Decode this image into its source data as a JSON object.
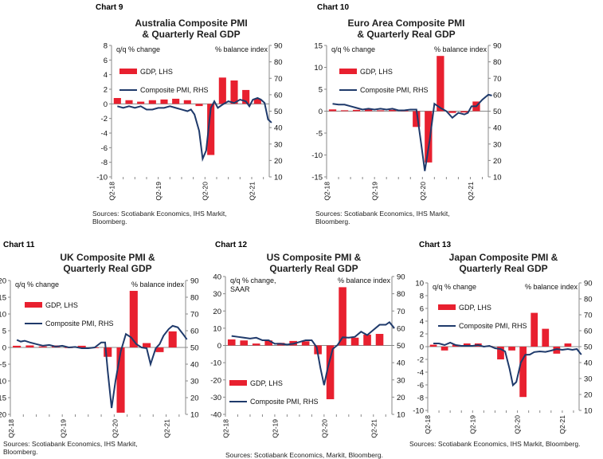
{
  "colors": {
    "gdp": "#e8202f",
    "pmi": "#1f3a6b",
    "axis": "#888888"
  },
  "chart_data": [
    {
      "type": "bar",
      "chart_label": "Chart 9",
      "title": "Australia Composite PMI\n& Quarterly Real GDP",
      "lhs_label": "q/q % change",
      "rhs_label": "% balance index",
      "ylim_lhs": [
        -10,
        8
      ],
      "ytick_lhs": [
        8,
        6,
        4,
        2,
        0,
        -2,
        -4,
        -6,
        -8,
        -10
      ],
      "ylim_rhs": [
        10,
        90
      ],
      "ytick_rhs": [
        90,
        80,
        70,
        60,
        50,
        40,
        30,
        20,
        10
      ],
      "legend": [
        "GDP, LHS",
        "Composite PMI, RHS"
      ],
      "xtick_labels": [
        "Q2-18",
        "Q2-19",
        "Q2-20",
        "Q2-21"
      ],
      "source": "Sources: Scotiabank Economics, IHS Markit,\nBloomberg.",
      "gdp_series": [
        {
          "q": 0,
          "v": 0.8
        },
        {
          "q": 1,
          "v": 0.5
        },
        {
          "q": 2,
          "v": 0.3
        },
        {
          "q": 3,
          "v": 0.5
        },
        {
          "q": 4,
          "v": 0.6
        },
        {
          "q": 5,
          "v": 0.7
        },
        {
          "q": 6,
          "v": 0.5
        },
        {
          "q": 7,
          "v": -0.3
        },
        {
          "q": 8,
          "v": -7.0
        },
        {
          "q": 9,
          "v": 3.6
        },
        {
          "q": 10,
          "v": 3.2
        },
        {
          "q": 11,
          "v": 1.9
        },
        {
          "q": 12,
          "v": 0.7
        }
      ],
      "pmi_series": [
        {
          "t": 0,
          "v": 53
        },
        {
          "t": 0.5,
          "v": 52
        },
        {
          "t": 1,
          "v": 53
        },
        {
          "t": 1.5,
          "v": 52
        },
        {
          "t": 2,
          "v": 53
        },
        {
          "t": 2.5,
          "v": 51
        },
        {
          "t": 3,
          "v": 51
        },
        {
          "t": 3.5,
          "v": 52
        },
        {
          "t": 4,
          "v": 52
        },
        {
          "t": 4.5,
          "v": 53
        },
        {
          "t": 5,
          "v": 52
        },
        {
          "t": 5.5,
          "v": 51
        },
        {
          "t": 6,
          "v": 50
        },
        {
          "t": 6.3,
          "v": 51
        },
        {
          "t": 6.6,
          "v": 48
        },
        {
          "t": 7,
          "v": 38
        },
        {
          "t": 7.3,
          "v": 21
        },
        {
          "t": 7.6,
          "v": 26
        },
        {
          "t": 8,
          "v": 52
        },
        {
          "t": 8.3,
          "v": 56
        },
        {
          "t": 8.6,
          "v": 52
        },
        {
          "t": 9,
          "v": 54
        },
        {
          "t": 9.5,
          "v": 56
        },
        {
          "t": 10,
          "v": 55
        },
        {
          "t": 10.5,
          "v": 57
        },
        {
          "t": 11,
          "v": 56
        },
        {
          "t": 11.3,
          "v": 53
        },
        {
          "t": 11.6,
          "v": 57
        },
        {
          "t": 12,
          "v": 58
        },
        {
          "t": 12.3,
          "v": 57
        },
        {
          "t": 12.6,
          "v": 55
        },
        {
          "t": 12.9,
          "v": 45
        },
        {
          "t": 13.2,
          "v": 43
        }
      ],
      "x_max": 13.5
    },
    {
      "type": "bar",
      "chart_label": "Chart 10",
      "title": "Euro Area Composite PMI\n& Quarterly Real GDP",
      "lhs_label": "q/q % change",
      "rhs_label": "% balance index",
      "ylim_lhs": [
        -15,
        15
      ],
      "ytick_lhs": [
        15,
        10,
        5,
        0,
        -5,
        -10,
        -15
      ],
      "ylim_rhs": [
        10,
        90
      ],
      "ytick_rhs": [
        90,
        80,
        70,
        60,
        50,
        40,
        30,
        20,
        10
      ],
      "legend": [
        "GDP, LHS",
        "Composite PMI, RHS"
      ],
      "xtick_labels": [
        "Q2-18",
        "Q2-19",
        "Q2-20",
        "Q2-21"
      ],
      "source": "Sources: Scotiabank Economics, IHS Markit,\nBloomberg.",
      "gdp_series": [
        {
          "q": 0,
          "v": 0.4
        },
        {
          "q": 1,
          "v": 0.2
        },
        {
          "q": 2,
          "v": 0.3
        },
        {
          "q": 3,
          "v": 0.5
        },
        {
          "q": 4,
          "v": 0.2
        },
        {
          "q": 5,
          "v": 0.3
        },
        {
          "q": 6,
          "v": 0.1
        },
        {
          "q": 7,
          "v": -3.6
        },
        {
          "q": 8,
          "v": -11.7
        },
        {
          "q": 9,
          "v": 12.6
        },
        {
          "q": 10,
          "v": -0.4
        },
        {
          "q": 11,
          "v": -0.3
        },
        {
          "q": 12,
          "v": 2.2
        }
      ],
      "pmi_series": [
        {
          "t": 0,
          "v": 54.5
        },
        {
          "t": 0.5,
          "v": 54
        },
        {
          "t": 1,
          "v": 54
        },
        {
          "t": 1.5,
          "v": 53
        },
        {
          "t": 2,
          "v": 52
        },
        {
          "t": 2.5,
          "v": 51
        },
        {
          "t": 3,
          "v": 51.5
        },
        {
          "t": 3.5,
          "v": 51
        },
        {
          "t": 4,
          "v": 51.5
        },
        {
          "t": 4.5,
          "v": 51
        },
        {
          "t": 5,
          "v": 51.5
        },
        {
          "t": 5.5,
          "v": 50.5
        },
        {
          "t": 6,
          "v": 50.5
        },
        {
          "t": 6.5,
          "v": 51
        },
        {
          "t": 7,
          "v": 51
        },
        {
          "t": 7.4,
          "v": 30
        },
        {
          "t": 7.7,
          "v": 13.6
        },
        {
          "t": 8.1,
          "v": 32
        },
        {
          "t": 8.5,
          "v": 54.5
        },
        {
          "t": 9,
          "v": 52
        },
        {
          "t": 9.5,
          "v": 50
        },
        {
          "t": 10,
          "v": 46
        },
        {
          "t": 10.5,
          "v": 49
        },
        {
          "t": 11,
          "v": 48
        },
        {
          "t": 11.3,
          "v": 49
        },
        {
          "t": 11.6,
          "v": 53
        },
        {
          "t": 12,
          "v": 53
        },
        {
          "t": 12.5,
          "v": 57
        },
        {
          "t": 13,
          "v": 60
        },
        {
          "t": 13.3,
          "v": 59.5
        }
      ],
      "x_max": 13.5
    },
    {
      "type": "bar",
      "chart_label": "Chart 11",
      "title": "UK Composite PMI &\nQuarterly Real GDP",
      "lhs_label": "q/q % change",
      "rhs_label": "% balance index",
      "ylim_lhs": [
        -20,
        20
      ],
      "ytick_lhs": [
        20,
        15,
        10,
        5,
        0,
        -5,
        -10,
        -15,
        -20
      ],
      "ylim_rhs": [
        10,
        90
      ],
      "ytick_rhs": [
        90,
        80,
        70,
        60,
        50,
        40,
        30,
        20,
        10
      ],
      "legend": [
        "GDP, LHS",
        "Composite PMI, RHS"
      ],
      "xtick_labels": [
        "Q2-18",
        "Q2-19",
        "Q2-20",
        "Q2-21"
      ],
      "source": "Sources: Scotiabank Economics, IHS Markit,\nBloomberg.",
      "gdp_series": [
        {
          "q": 0,
          "v": 0.5
        },
        {
          "q": 1,
          "v": 0.6
        },
        {
          "q": 2,
          "v": 0.3
        },
        {
          "q": 3,
          "v": 0.6
        },
        {
          "q": 4,
          "v": 0.0
        },
        {
          "q": 5,
          "v": 0.5
        },
        {
          "q": 6,
          "v": -0.2
        },
        {
          "q": 7,
          "v": -2.8
        },
        {
          "q": 8,
          "v": -19.5
        },
        {
          "q": 9,
          "v": 16.9
        },
        {
          "q": 10,
          "v": 1.3
        },
        {
          "q": 11,
          "v": -1.4
        },
        {
          "q": 12,
          "v": 4.8
        }
      ],
      "pmi_series": [
        {
          "t": 0,
          "v": 54.5
        },
        {
          "t": 0.3,
          "v": 53.5
        },
        {
          "t": 0.6,
          "v": 54
        },
        {
          "t": 1,
          "v": 53
        },
        {
          "t": 1.5,
          "v": 52
        },
        {
          "t": 2,
          "v": 51
        },
        {
          "t": 2.5,
          "v": 51.5
        },
        {
          "t": 3,
          "v": 50.5
        },
        {
          "t": 3.5,
          "v": 51
        },
        {
          "t": 4,
          "v": 50
        },
        {
          "t": 4.5,
          "v": 50.3
        },
        {
          "t": 5,
          "v": 49.5
        },
        {
          "t": 5.5,
          "v": 49.5
        },
        {
          "t": 6,
          "v": 50
        },
        {
          "t": 6.5,
          "v": 53
        },
        {
          "t": 6.8,
          "v": 53
        },
        {
          "t": 7,
          "v": 36
        },
        {
          "t": 7.3,
          "v": 13.8
        },
        {
          "t": 7.6,
          "v": 30
        },
        {
          "t": 8,
          "v": 47.5
        },
        {
          "t": 8.4,
          "v": 58
        },
        {
          "t": 8.8,
          "v": 56
        },
        {
          "t": 9.2,
          "v": 52
        },
        {
          "t": 9.6,
          "v": 50
        },
        {
          "t": 10,
          "v": 49.5
        },
        {
          "t": 10.3,
          "v": 40
        },
        {
          "t": 10.7,
          "v": 49.5
        },
        {
          "t": 11,
          "v": 52
        },
        {
          "t": 11.3,
          "v": 57
        },
        {
          "t": 11.7,
          "v": 61
        },
        {
          "t": 12,
          "v": 62.9
        },
        {
          "t": 12.4,
          "v": 62
        },
        {
          "t": 12.8,
          "v": 58
        },
        {
          "t": 13.1,
          "v": 54.8
        }
      ],
      "x_max": 13.5
    },
    {
      "type": "bar",
      "chart_label": "Chart 12",
      "title": "US Composite PMI &\nQuarterly Real GDP",
      "lhs_label": "q/q % change,\nSAAR",
      "rhs_label": "% balance index",
      "ylim_lhs": [
        -40,
        40
      ],
      "ytick_lhs": [
        40,
        30,
        20,
        10,
        0,
        -10,
        -20,
        -30,
        -40
      ],
      "ylim_rhs": [
        10,
        90
      ],
      "ytick_rhs": [
        90,
        80,
        70,
        60,
        50,
        40,
        30,
        20,
        10
      ],
      "legend": [
        "GDP, LHS",
        "Composite PMI, RHS"
      ],
      "xtick_labels": [
        "Q2-18",
        "Q2-19",
        "Q2-20",
        "Q2-21"
      ],
      "source": "Sources: Scotiabank Economics, Markit, Bloomberg.",
      "gdp_series": [
        {
          "q": 0,
          "v": 3.5
        },
        {
          "q": 1,
          "v": 2.9
        },
        {
          "q": 2,
          "v": 1.1
        },
        {
          "q": 3,
          "v": 2.9
        },
        {
          "q": 4,
          "v": 1.5
        },
        {
          "q": 5,
          "v": 2.6
        },
        {
          "q": 6,
          "v": 2.4
        },
        {
          "q": 7,
          "v": -5.1
        },
        {
          "q": 8,
          "v": -31.2
        },
        {
          "q": 9,
          "v": 33.8
        },
        {
          "q": 10,
          "v": 4.5
        },
        {
          "q": 11,
          "v": 6.3
        },
        {
          "q": 12,
          "v": 6.7
        }
      ],
      "pmi_series": [
        {
          "t": 0,
          "v": 55.5
        },
        {
          "t": 0.5,
          "v": 55
        },
        {
          "t": 1,
          "v": 54.5
        },
        {
          "t": 1.5,
          "v": 54
        },
        {
          "t": 2,
          "v": 54.5
        },
        {
          "t": 2.5,
          "v": 53
        },
        {
          "t": 3,
          "v": 53
        },
        {
          "t": 3.5,
          "v": 51
        },
        {
          "t": 4,
          "v": 51
        },
        {
          "t": 4.5,
          "v": 50.5
        },
        {
          "t": 5,
          "v": 51
        },
        {
          "t": 5.5,
          "v": 52
        },
        {
          "t": 6,
          "v": 53
        },
        {
          "t": 6.5,
          "v": 53
        },
        {
          "t": 6.9,
          "v": 49
        },
        {
          "t": 7.2,
          "v": 37
        },
        {
          "t": 7.5,
          "v": 27
        },
        {
          "t": 7.8,
          "v": 37
        },
        {
          "t": 8.2,
          "v": 47.9
        },
        {
          "t": 8.6,
          "v": 50.3
        },
        {
          "t": 9,
          "v": 54.7
        },
        {
          "t": 9.5,
          "v": 54.5
        },
        {
          "t": 10,
          "v": 55
        },
        {
          "t": 10.5,
          "v": 58
        },
        {
          "t": 11,
          "v": 56
        },
        {
          "t": 11.5,
          "v": 59
        },
        {
          "t": 12,
          "v": 62
        },
        {
          "t": 12.5,
          "v": 62
        },
        {
          "t": 12.8,
          "v": 63.5
        },
        {
          "t": 13.2,
          "v": 60
        }
      ],
      "x_max": 13.5
    },
    {
      "type": "bar",
      "chart_label": "Chart 13",
      "title": "Japan Composite PMI &\nQuarterly Real GDP",
      "lhs_label": "q/q % change",
      "rhs_label": "% balance index",
      "ylim_lhs": [
        -10,
        10
      ],
      "ytick_lhs": [
        10,
        8,
        6,
        4,
        2,
        0,
        -2,
        -4,
        -6,
        -8,
        -10
      ],
      "ylim_rhs": [
        10,
        90
      ],
      "ytick_rhs": [
        90,
        80,
        70,
        60,
        50,
        40,
        30,
        20,
        10
      ],
      "legend": [
        "GDP, LHS",
        "Composite PMI, RHS"
      ],
      "xtick_labels": [
        "Q2-18",
        "Q2-19",
        "Q2-20",
        "Q2-21"
      ],
      "source": "Sources: Scotiabank Economics, IHS Markit, Bloomberg.",
      "gdp_series": [
        {
          "q": 0,
          "v": 0.3
        },
        {
          "q": 1,
          "v": -0.6
        },
        {
          "q": 2,
          "v": 0.3
        },
        {
          "q": 3,
          "v": 0.5
        },
        {
          "q": 4,
          "v": 0.5
        },
        {
          "q": 5,
          "v": 0.1
        },
        {
          "q": 6,
          "v": -2.0
        },
        {
          "q": 7,
          "v": -0.6
        },
        {
          "q": 8,
          "v": -7.9
        },
        {
          "q": 9,
          "v": 5.3
        },
        {
          "q": 10,
          "v": 2.8
        },
        {
          "q": 11,
          "v": -1.1
        },
        {
          "q": 12,
          "v": 0.5
        }
      ],
      "pmi_series": [
        {
          "t": 0,
          "v": 52
        },
        {
          "t": 0.5,
          "v": 52
        },
        {
          "t": 1,
          "v": 51
        },
        {
          "t": 1.5,
          "v": 52.5
        },
        {
          "t": 2,
          "v": 51
        },
        {
          "t": 2.5,
          "v": 50.5
        },
        {
          "t": 3,
          "v": 50.5
        },
        {
          "t": 3.5,
          "v": 50.5
        },
        {
          "t": 4,
          "v": 51
        },
        {
          "t": 4.5,
          "v": 50
        },
        {
          "t": 5,
          "v": 50.5
        },
        {
          "t": 5.5,
          "v": 49
        },
        {
          "t": 6,
          "v": 48.5
        },
        {
          "t": 6.4,
          "v": 47
        },
        {
          "t": 6.8,
          "v": 36
        },
        {
          "t": 7.1,
          "v": 25.8
        },
        {
          "t": 7.4,
          "v": 27.8
        },
        {
          "t": 7.8,
          "v": 40
        },
        {
          "t": 8.2,
          "v": 44.9
        },
        {
          "t": 8.6,
          "v": 45
        },
        {
          "t": 9,
          "v": 46.6
        },
        {
          "t": 9.5,
          "v": 47
        },
        {
          "t": 10,
          "v": 46.7
        },
        {
          "t": 10.5,
          "v": 47.5
        },
        {
          "t": 11,
          "v": 48.5
        },
        {
          "t": 11.5,
          "v": 48
        },
        {
          "t": 12,
          "v": 48.5
        },
        {
          "t": 12.4,
          "v": 48
        },
        {
          "t": 12.8,
          "v": 48.5
        },
        {
          "t": 13.2,
          "v": 45
        }
      ],
      "x_max": 13.5
    }
  ]
}
